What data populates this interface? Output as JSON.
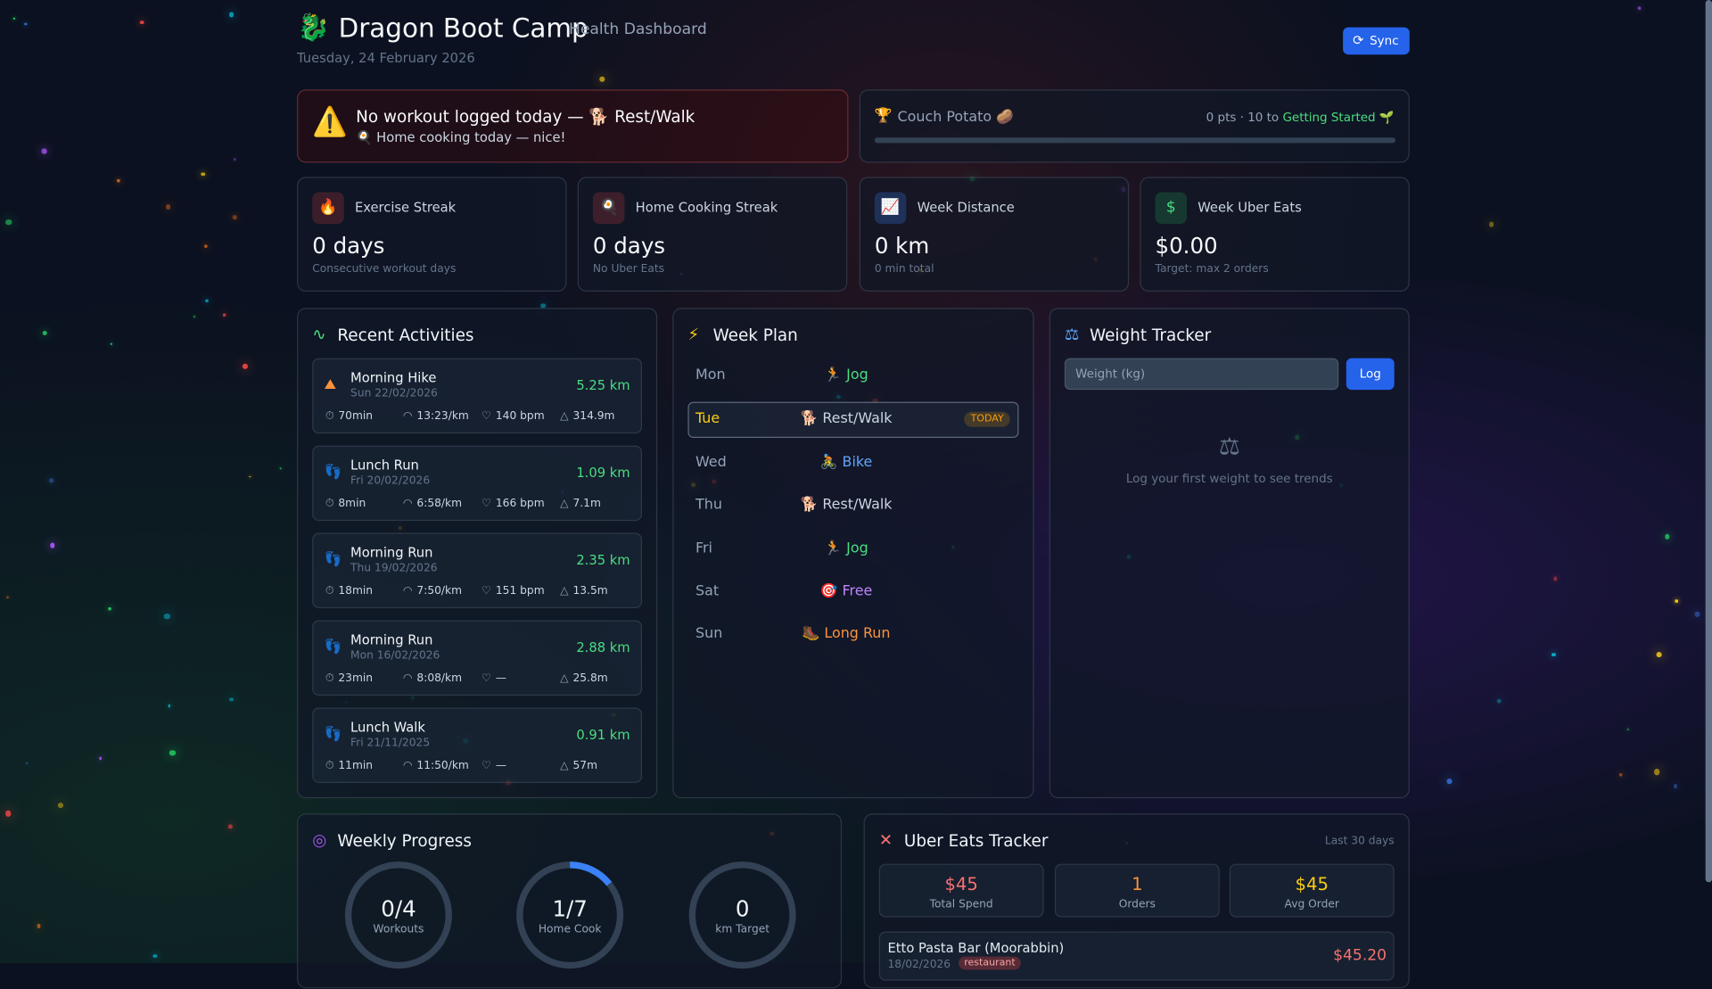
{
  "header": {
    "logo": "🐉",
    "title": "Dragon Boot Camp",
    "subtitle": "Health Dashboard",
    "date": "Tuesday, 24 February 2026",
    "sync": "Sync"
  },
  "alerts": {
    "workout": {
      "icon": "⚠️",
      "title": "No workout logged today — 🐕 Rest/Walk",
      "note": "🍳 Home cooking today — nice!"
    },
    "level": {
      "name": "Couch Potato 🥔",
      "points": "0 pts · 10 to",
      "next": "Getting Started 🌱"
    }
  },
  "stats": [
    {
      "label": "Exercise Streak",
      "value": "0 days",
      "sub": "Consecutive workout days"
    },
    {
      "label": "Home Cooking Streak",
      "value": "0 days",
      "sub": "No Uber Eats"
    },
    {
      "label": "Week Distance",
      "value": "0 km",
      "sub": "0 min total"
    },
    {
      "label": "Week Uber Eats",
      "value": "$0.00",
      "sub": "Target: max 2 orders"
    }
  ],
  "activities": {
    "title": "Recent Activities",
    "items": [
      {
        "name": "Morning Hike",
        "date": "Sun 22/02/2026",
        "distance": "5.25 km",
        "duration": "70min",
        "pace": "13:23/km",
        "hr": "140 bpm",
        "elevation": "314.9m"
      },
      {
        "name": "Lunch Run",
        "date": "Fri 20/02/2026",
        "distance": "1.09 km",
        "duration": "8min",
        "pace": "6:58/km",
        "hr": "166 bpm",
        "elevation": "7.1m"
      },
      {
        "name": "Morning Run",
        "date": "Thu 19/02/2026",
        "distance": "2.35 km",
        "duration": "18min",
        "pace": "7:50/km",
        "hr": "151 bpm",
        "elevation": "13.5m"
      },
      {
        "name": "Morning Run",
        "date": "Mon 16/02/2026",
        "distance": "2.88 km",
        "duration": "23min",
        "pace": "8:08/km",
        "hr": "—",
        "elevation": "25.8m"
      },
      {
        "name": "Lunch Walk",
        "date": "Fri 21/11/2025",
        "distance": "0.91 km",
        "duration": "11min",
        "pace": "11:50/km",
        "hr": "—",
        "elevation": "57m"
      }
    ]
  },
  "week_plan": {
    "title": "Week Plan",
    "today_badge": "TODAY",
    "days": [
      {
        "day": "Mon",
        "plan": "🏃 Jog",
        "color": "#4ade80"
      },
      {
        "day": "Tue",
        "plan": "🐕 Rest/Walk",
        "color": "#cbd5e1",
        "today": true
      },
      {
        "day": "Wed",
        "plan": "🚴 Bike",
        "color": "#60a5fa"
      },
      {
        "day": "Thu",
        "plan": "🐕 Rest/Walk",
        "color": "#cbd5e1"
      },
      {
        "day": "Fri",
        "plan": "🏃 Jog",
        "color": "#4ade80"
      },
      {
        "day": "Sat",
        "plan": "🎯 Free",
        "color": "#c084fc"
      },
      {
        "day": "Sun",
        "plan": "🥾 Long Run",
        "color": "#fb923c"
      }
    ]
  },
  "weight": {
    "title": "Weight Tracker",
    "placeholder": "Weight (kg)",
    "button": "Log",
    "empty": "Log your first weight to see trends"
  },
  "weekly_progress": {
    "title": "Weekly Progress",
    "rings": [
      {
        "value": "0/4",
        "label": "Workouts"
      },
      {
        "value": "1/7",
        "label": "Home Cook"
      },
      {
        "value": "0",
        "label": "km Target"
      }
    ]
  },
  "uber": {
    "title": "Uber Eats Tracker",
    "period": "Last 30 days",
    "summary": [
      {
        "value": "$45",
        "label": "Total Spend",
        "color": "#f87171"
      },
      {
        "value": "1",
        "label": "Orders",
        "color": "#fb923c"
      },
      {
        "value": "$45",
        "label": "Avg Order",
        "color": "#facc15"
      }
    ],
    "orders": [
      {
        "name": "Etto Pasta Bar (Moorabbin)",
        "date": "18/02/2026",
        "tag": "restaurant",
        "price": "$45.20"
      }
    ]
  }
}
